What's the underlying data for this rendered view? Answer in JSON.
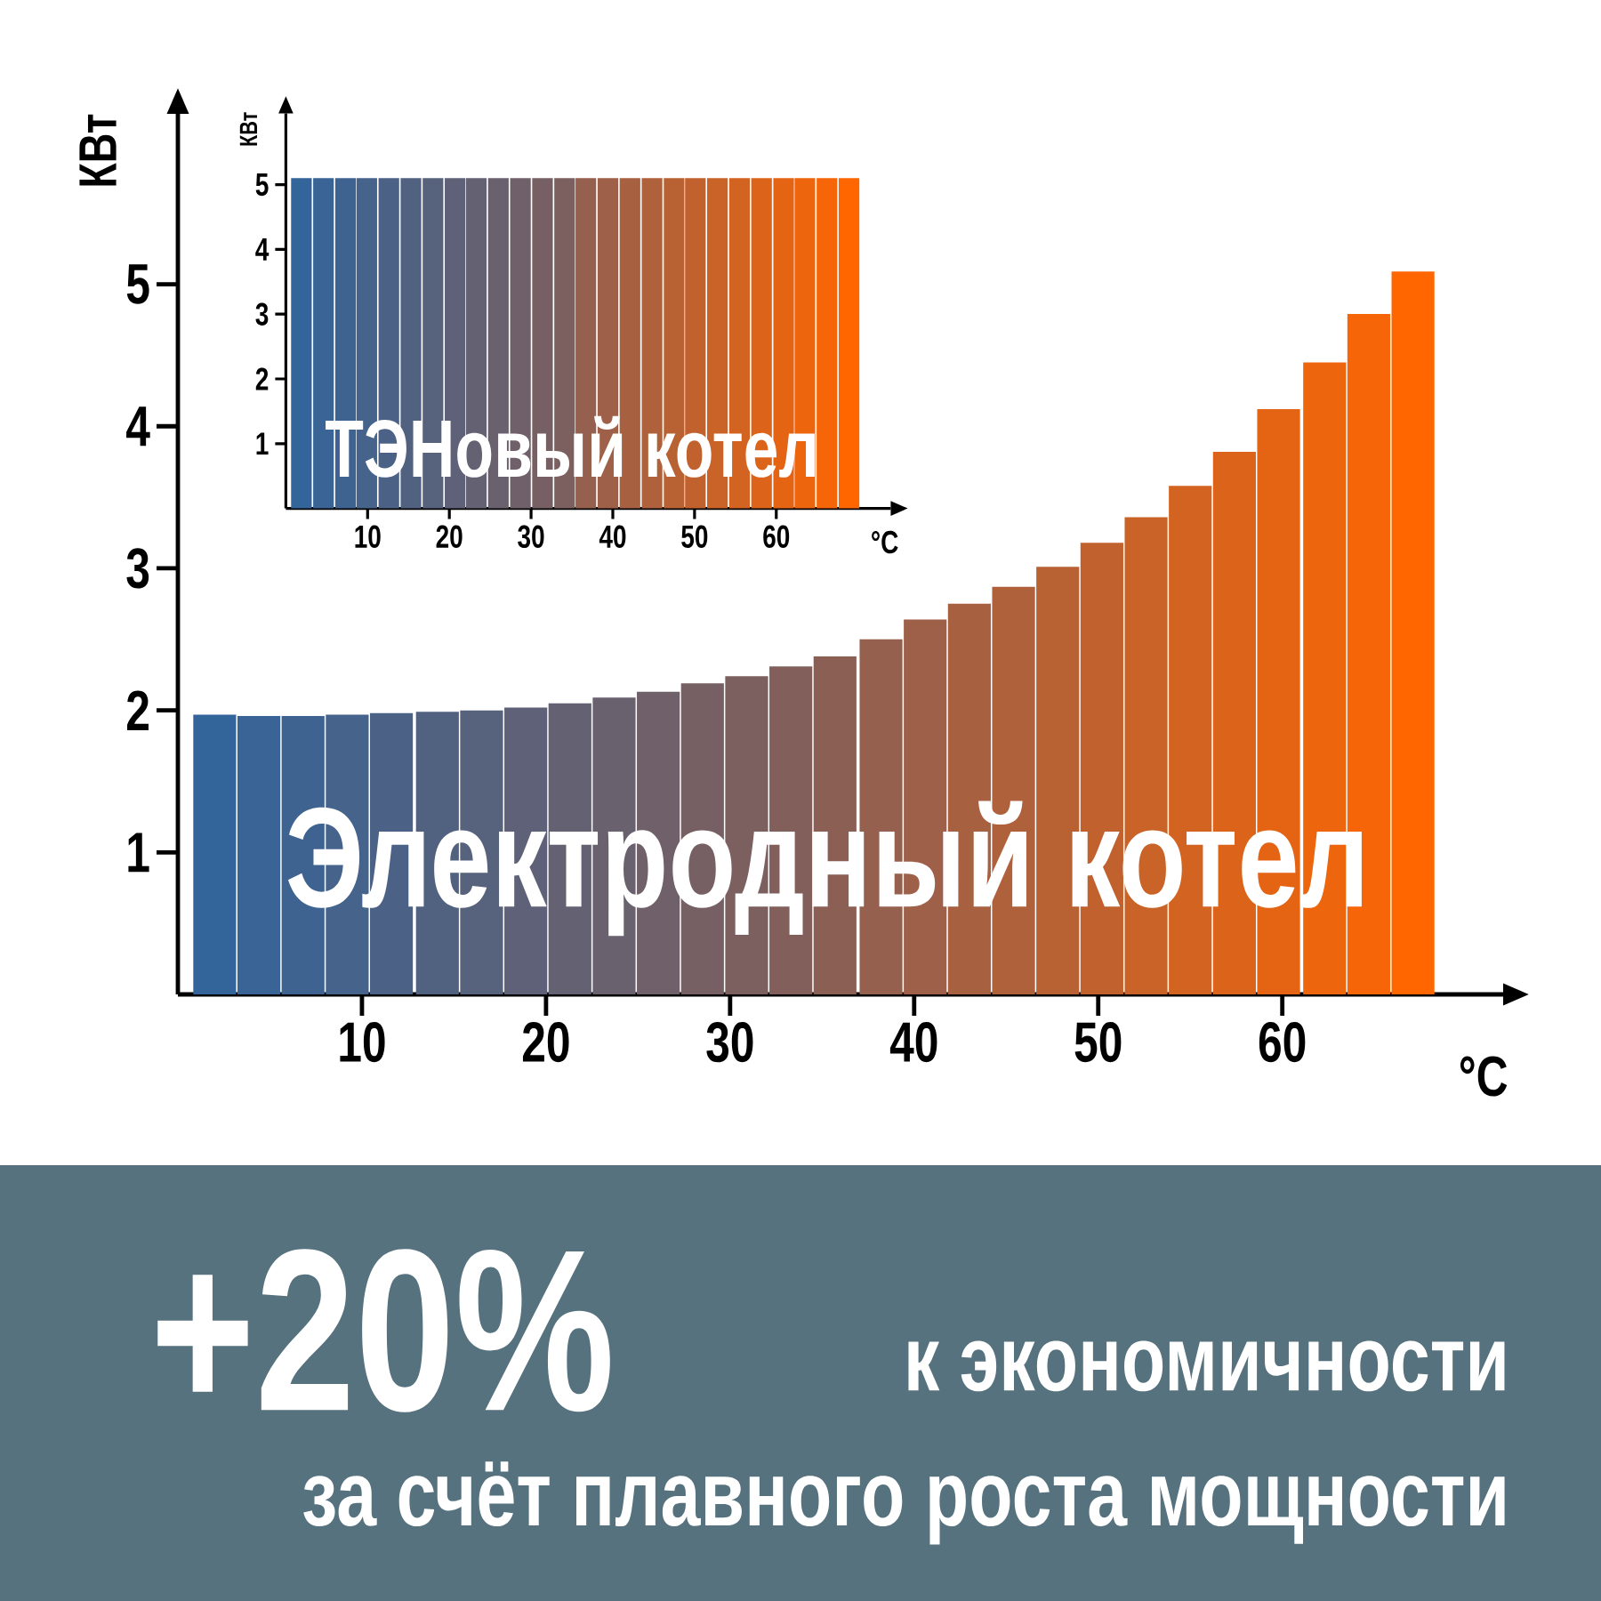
{
  "chart_data": [
    {
      "type": "bar",
      "title": "Электродный котел",
      "xlabel": "°C",
      "ylabel": "КВт",
      "x": [
        2.0,
        4.4,
        6.8,
        9.2,
        11.6,
        14.1,
        16.5,
        18.9,
        21.3,
        23.7,
        26.1,
        28.5,
        30.9,
        33.3,
        35.7,
        38.2,
        40.6,
        43.0,
        45.4,
        47.8,
        50.2,
        52.6,
        55.0,
        57.4,
        59.8,
        62.3,
        64.7,
        67.1
      ],
      "values": [
        1.97,
        1.96,
        1.96,
        1.97,
        1.98,
        1.99,
        2.0,
        2.02,
        2.05,
        2.09,
        2.13,
        2.19,
        2.24,
        2.31,
        2.38,
        2.5,
        2.64,
        2.75,
        2.87,
        3.01,
        3.18,
        3.36,
        3.58,
        3.82,
        4.12,
        4.45,
        4.79,
        5.09
      ],
      "colors": [
        "#33649a",
        "#396495",
        "#3f6390",
        "#45638b",
        "#4b6286",
        "#516281",
        "#57627c",
        "#5e6178",
        "#646173",
        "#6a616e",
        "#706069",
        "#766064",
        "#7c5f5f",
        "#825f5a",
        "#8c5f55",
        "#95604e",
        "#9e6048",
        "#a76141",
        "#af613b",
        "#b86234",
        "#c1622e",
        "#ca6327",
        "#d36321",
        "#dc641a",
        "#e46414",
        "#ed650d",
        "#f66507",
        "#ff6600"
      ],
      "xlim": [
        0,
        72
      ],
      "ylim": [
        0,
        6.2
      ],
      "xticks": [
        10,
        20,
        30,
        40,
        50,
        60
      ],
      "yticks": [
        1,
        2,
        3,
        4,
        5
      ],
      "annotations": [
        "+20%",
        "к экономичности",
        "за счёт плавного роста мощности"
      ]
    },
    {
      "type": "bar",
      "title": "ТЭНовый котел",
      "xlabel": "°C",
      "ylabel": "КВт",
      "x": [
        1.9,
        4.6,
        7.3,
        9.9,
        12.6,
        15.3,
        18.0,
        20.7,
        23.3,
        26.0,
        28.7,
        31.4,
        34.1,
        36.7,
        39.4,
        42.1,
        44.8,
        47.5,
        50.1,
        52.8,
        55.5,
        58.2,
        60.9,
        63.5,
        66.2,
        68.9
      ],
      "values": [
        5.1,
        5.1,
        5.1,
        5.1,
        5.1,
        5.1,
        5.1,
        5.1,
        5.1,
        5.1,
        5.1,
        5.1,
        5.1,
        5.1,
        5.1,
        5.1,
        5.1,
        5.1,
        5.1,
        5.1,
        5.1,
        5.1,
        5.1,
        5.1,
        5.1,
        5.1
      ],
      "colors": [
        "#33649a",
        "#396495",
        "#3f6390",
        "#45638b",
        "#4b6286",
        "#516281",
        "#57627c",
        "#5e6178",
        "#646173",
        "#6a616e",
        "#706069",
        "#766064",
        "#7c5f5f",
        "#95604e",
        "#9e6048",
        "#a76141",
        "#af613b",
        "#b86234",
        "#c1622e",
        "#ca6327",
        "#d36321",
        "#dc641a",
        "#e46414",
        "#ed650d",
        "#f66507",
        "#ff6600"
      ],
      "xlim": [
        0,
        74
      ],
      "ylim": [
        0,
        6.1
      ],
      "xticks": [
        10,
        20,
        30,
        40,
        50,
        60
      ],
      "yticks": [
        1,
        2,
        3,
        4,
        5
      ]
    }
  ]
}
